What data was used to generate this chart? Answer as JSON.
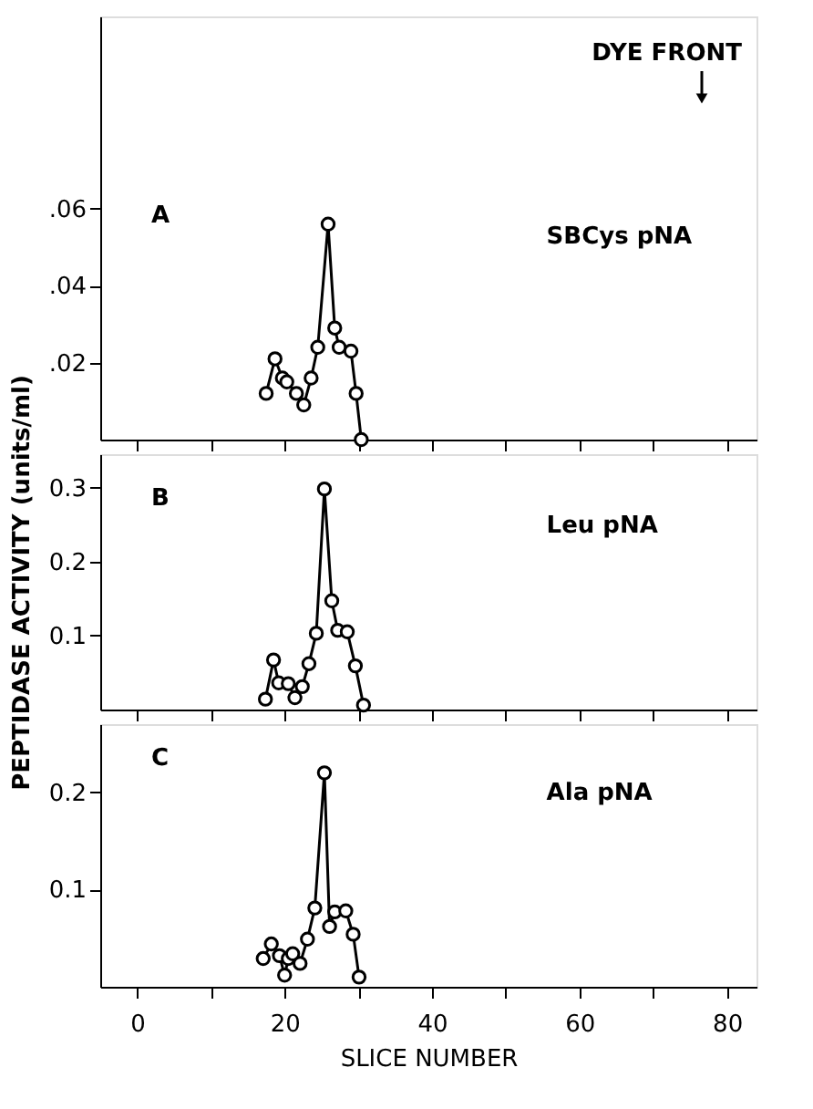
{
  "chart_data": [
    {
      "type": "line",
      "annotations": [
        "DYE FRONT",
        "A"
      ],
      "xlim": [
        -5,
        84
      ],
      "ylim": [
        0,
        0.11
      ],
      "xticks": [
        0,
        {
          "value": 10,
          "label": null
        },
        20,
        {
          "value": 30,
          "label": null
        },
        40,
        {
          "value": 50,
          "label": null
        },
        60,
        {
          "value": 70,
          "label": null
        },
        80
      ],
      "yticks": [
        {
          "value": 0.02,
          "label": ".02"
        },
        {
          "value": 0.04,
          "label": ".04"
        },
        {
          "value": 0.06,
          "label": ".06"
        }
      ],
      "tick_labels": "y",
      "marker": "circle",
      "line_style": "solid",
      "grid": false,
      "series": [
        {
          "name": "SBCys pNA",
          "color": "#000000",
          "x": [
            17.5,
            18.7,
            19.7,
            20.3,
            21.6,
            22.6,
            23.6,
            24.5,
            25.9,
            26.8,
            27.4,
            29.0,
            29.7,
            30.4
          ],
          "values": [
            0.012,
            0.021,
            0.016,
            0.015,
            0.012,
            0.009,
            0.016,
            0.024,
            0.056,
            0.029,
            0.024,
            0.023,
            0.012,
            0.0
          ]
        }
      ]
    },
    {
      "type": "line",
      "annotations": [
        "B"
      ],
      "ylabel": "PEPTIDASE ACTIVITY (units/ml)",
      "xlim": [
        -5,
        84
      ],
      "ylim": [
        0,
        0.345
      ],
      "xticks": [
        0,
        {
          "value": 10,
          "label": null
        },
        20,
        {
          "value": 30,
          "label": null
        },
        40,
        {
          "value": 50,
          "label": null
        },
        60,
        {
          "value": 70,
          "label": null
        },
        80
      ],
      "yticks": [
        0.1,
        0.2,
        0.3
      ],
      "tick_labels": "y",
      "marker": "circle",
      "line_style": "solid",
      "grid": false,
      "series": [
        {
          "name": "Leu pNA",
          "color": "#000000",
          "x": [
            17.4,
            18.5,
            19.2,
            20.5,
            21.4,
            22.4,
            23.3,
            24.3,
            25.4,
            26.4,
            27.2,
            28.5,
            29.6,
            30.7
          ],
          "values": [
            0.014,
            0.067,
            0.036,
            0.035,
            0.016,
            0.031,
            0.062,
            0.103,
            0.298,
            0.147,
            0.107,
            0.105,
            0.059,
            0.006
          ]
        }
      ]
    },
    {
      "type": "line",
      "annotations": [
        "C"
      ],
      "xlabel": "SLICE NUMBER",
      "xlim": [
        -5,
        84
      ],
      "ylim": [
        0,
        0.27
      ],
      "xticks": [
        0,
        {
          "value": 10,
          "label": null
        },
        20,
        {
          "value": 30,
          "label": null
        },
        40,
        {
          "value": 50,
          "label": null
        },
        60,
        {
          "value": 70,
          "label": null
        },
        80
      ],
      "yticks": [
        0.1,
        0.2
      ],
      "marker": "circle",
      "line_style": "solid",
      "grid": false,
      "series": [
        {
          "name": "Ala pNA",
          "color": "#000000",
          "x": [
            17.1,
            18.2,
            19.3,
            20.0,
            20.5,
            21.1,
            22.1,
            23.1,
            24.1,
            25.4,
            26.1,
            26.8,
            28.3,
            29.3,
            30.1
          ],
          "values": [
            0.029,
            0.044,
            0.032,
            0.012,
            0.029,
            0.034,
            0.024,
            0.049,
            0.081,
            0.22,
            0.062,
            0.077,
            0.078,
            0.054,
            0.01
          ]
        }
      ]
    }
  ]
}
